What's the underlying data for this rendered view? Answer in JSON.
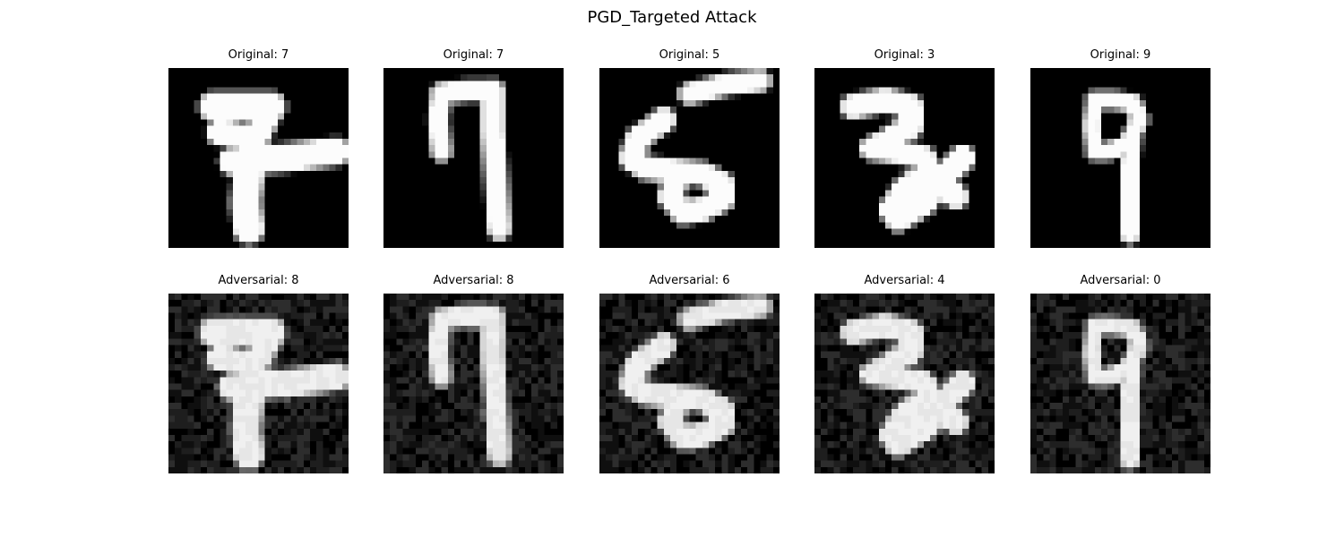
{
  "figure": {
    "title": "PGD_Targeted Attack"
  },
  "rows": [
    {
      "panels": [
        {
          "title": "Original: 7",
          "digit": "7a",
          "adversarial": false
        },
        {
          "title": "Original: 7",
          "digit": "7b",
          "adversarial": false
        },
        {
          "title": "Original: 5",
          "digit": "5",
          "adversarial": false
        },
        {
          "title": "Original: 3",
          "digit": "3",
          "adversarial": false
        },
        {
          "title": "Original: 9",
          "digit": "9",
          "adversarial": false
        }
      ]
    },
    {
      "panels": [
        {
          "title": "Adversarial: 8",
          "digit": "7a",
          "adversarial": true
        },
        {
          "title": "Adversarial: 8",
          "digit": "7b",
          "adversarial": true
        },
        {
          "title": "Adversarial: 6",
          "digit": "5",
          "adversarial": true
        },
        {
          "title": "Adversarial: 4",
          "digit": "3",
          "adversarial": true
        },
        {
          "title": "Adversarial: 0",
          "digit": "9",
          "adversarial": true
        }
      ]
    }
  ],
  "colormap": "gray"
}
